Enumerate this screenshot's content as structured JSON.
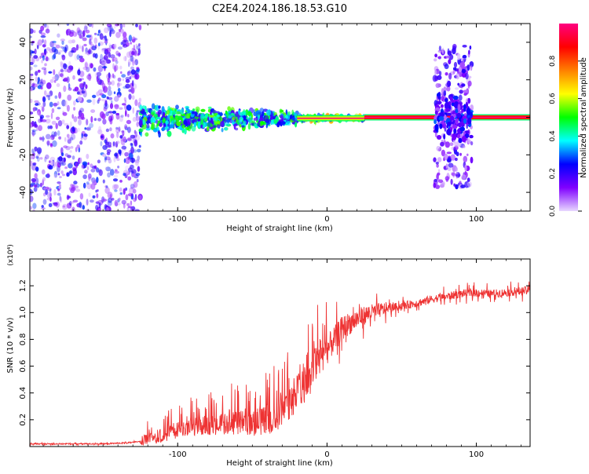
{
  "title": "C2E4.2024.186.18.53.G10",
  "chart_data": [
    {
      "type": "heatmap",
      "xlabel": "Height of straight line (km)",
      "ylabel": "Frequency (Hz)",
      "xlim": [
        -199,
        136
      ],
      "ylim": [
        -50,
        50
      ],
      "x_ticks": [
        -100,
        0,
        100
      ],
      "y_ticks": [
        -40,
        -20,
        0,
        20,
        40
      ],
      "colorbar": {
        "label": "Normalized spectral amplitude",
        "range": [
          0,
          1
        ],
        "ticks": [
          0.0,
          0.2,
          0.4,
          0.6,
          0.8
        ],
        "colors": [
          "#e8d8ff",
          "#8000ff",
          "#0000ff",
          "#00ffff",
          "#00ff00",
          "#ffff00",
          "#ff8000",
          "#ff0000",
          "#ff0080"
        ]
      },
      "regions": [
        {
          "x": [
            -199,
            -125
          ],
          "f": [
            -50,
            50
          ],
          "level": 0.25,
          "pattern": "scattered noise"
        },
        {
          "x": [
            -125,
            -20
          ],
          "f": [
            -10,
            7
          ],
          "level": 0.45,
          "pattern": "broadband blob"
        },
        {
          "x": [
            -20,
            25
          ],
          "f": [
            -3,
            2
          ],
          "level": 0.6,
          "pattern": "narrowing line"
        },
        {
          "x": [
            25,
            136
          ],
          "f": [
            -1,
            1
          ],
          "level": 0.85,
          "pattern": "narrow line near 0 Hz"
        },
        {
          "x": [
            72,
            97
          ],
          "f": [
            -38,
            38
          ],
          "level": 0.2,
          "pattern": "vertical noise band"
        }
      ]
    },
    {
      "type": "line",
      "xlabel": "Height of straight line (km)",
      "ylabel": "SNR (10 * v/v)",
      "y_multiplier": "(x10⁴)",
      "xlim": [
        -199,
        136
      ],
      "ylim": [
        0,
        1.4
      ],
      "x_ticks": [
        -100,
        0,
        100
      ],
      "y_ticks": [
        0.2,
        0.4,
        0.6,
        0.8,
        1.0,
        1.2
      ],
      "color": "#ee3333",
      "series": [
        {
          "x": [
            -199,
            -170,
            -150,
            -130,
            -120,
            -110,
            -100,
            -90,
            -80,
            -70,
            -60,
            -50,
            -40,
            -35,
            -30,
            -25,
            -20,
            -15,
            -10,
            -5,
            0,
            5,
            10,
            15,
            20,
            25,
            30,
            40,
            50,
            60,
            70,
            80,
            90,
            100,
            110,
            120,
            130,
            136
          ],
          "y": [
            0.02,
            0.02,
            0.02,
            0.03,
            0.05,
            0.08,
            0.12,
            0.15,
            0.16,
            0.17,
            0.18,
            0.18,
            0.2,
            0.22,
            0.25,
            0.3,
            0.4,
            0.45,
            0.55,
            0.65,
            0.72,
            0.8,
            0.88,
            0.92,
            0.95,
            0.98,
            1.0,
            1.03,
            1.05,
            1.07,
            1.1,
            1.12,
            1.14,
            1.15,
            1.14,
            1.15,
            1.16,
            1.17
          ]
        }
      ]
    }
  ]
}
